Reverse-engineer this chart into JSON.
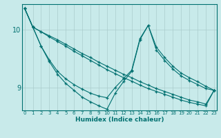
{
  "xlabel": "Humidex (Indice chaleur)",
  "ylabel": "",
  "background_color": "#c8eaea",
  "grid_color": "#aacccc",
  "line_color": "#007070",
  "x_ticks": [
    0,
    1,
    2,
    3,
    4,
    5,
    6,
    7,
    8,
    9,
    10,
    11,
    12,
    13,
    14,
    15,
    16,
    17,
    18,
    19,
    20,
    21,
    22,
    23
  ],
  "y_ticks": [
    9,
    10
  ],
  "ylim": [
    8.6,
    10.45
  ],
  "xlim": [
    -0.3,
    23.3
  ],
  "series": [
    [
      10.38,
      10.05,
      9.97,
      9.9,
      9.83,
      9.75,
      9.67,
      9.59,
      9.52,
      9.44,
      9.37,
      9.3,
      9.23,
      9.17,
      9.1,
      9.04,
      8.98,
      8.93,
      8.88,
      8.83,
      8.78,
      8.75,
      8.71,
      8.95
    ],
    [
      10.38,
      10.05,
      9.97,
      9.88,
      9.8,
      9.72,
      9.63,
      9.55,
      9.47,
      9.39,
      9.31,
      9.24,
      9.17,
      9.11,
      9.04,
      8.98,
      8.93,
      8.88,
      8.83,
      8.78,
      8.74,
      8.71,
      8.68,
      8.95
    ],
    [
      10.38,
      10.05,
      9.72,
      9.48,
      9.28,
      9.15,
      9.05,
      8.97,
      8.9,
      8.85,
      8.82,
      9.0,
      9.15,
      9.3,
      9.85,
      10.08,
      9.7,
      9.52,
      9.37,
      9.25,
      9.17,
      9.1,
      9.02,
      8.95
    ],
    [
      10.38,
      10.05,
      9.72,
      9.45,
      9.23,
      9.07,
      8.95,
      8.83,
      8.75,
      8.68,
      8.62,
      8.9,
      9.1,
      9.28,
      9.83,
      10.08,
      9.65,
      9.47,
      9.32,
      9.2,
      9.12,
      9.05,
      8.98,
      8.95
    ]
  ]
}
